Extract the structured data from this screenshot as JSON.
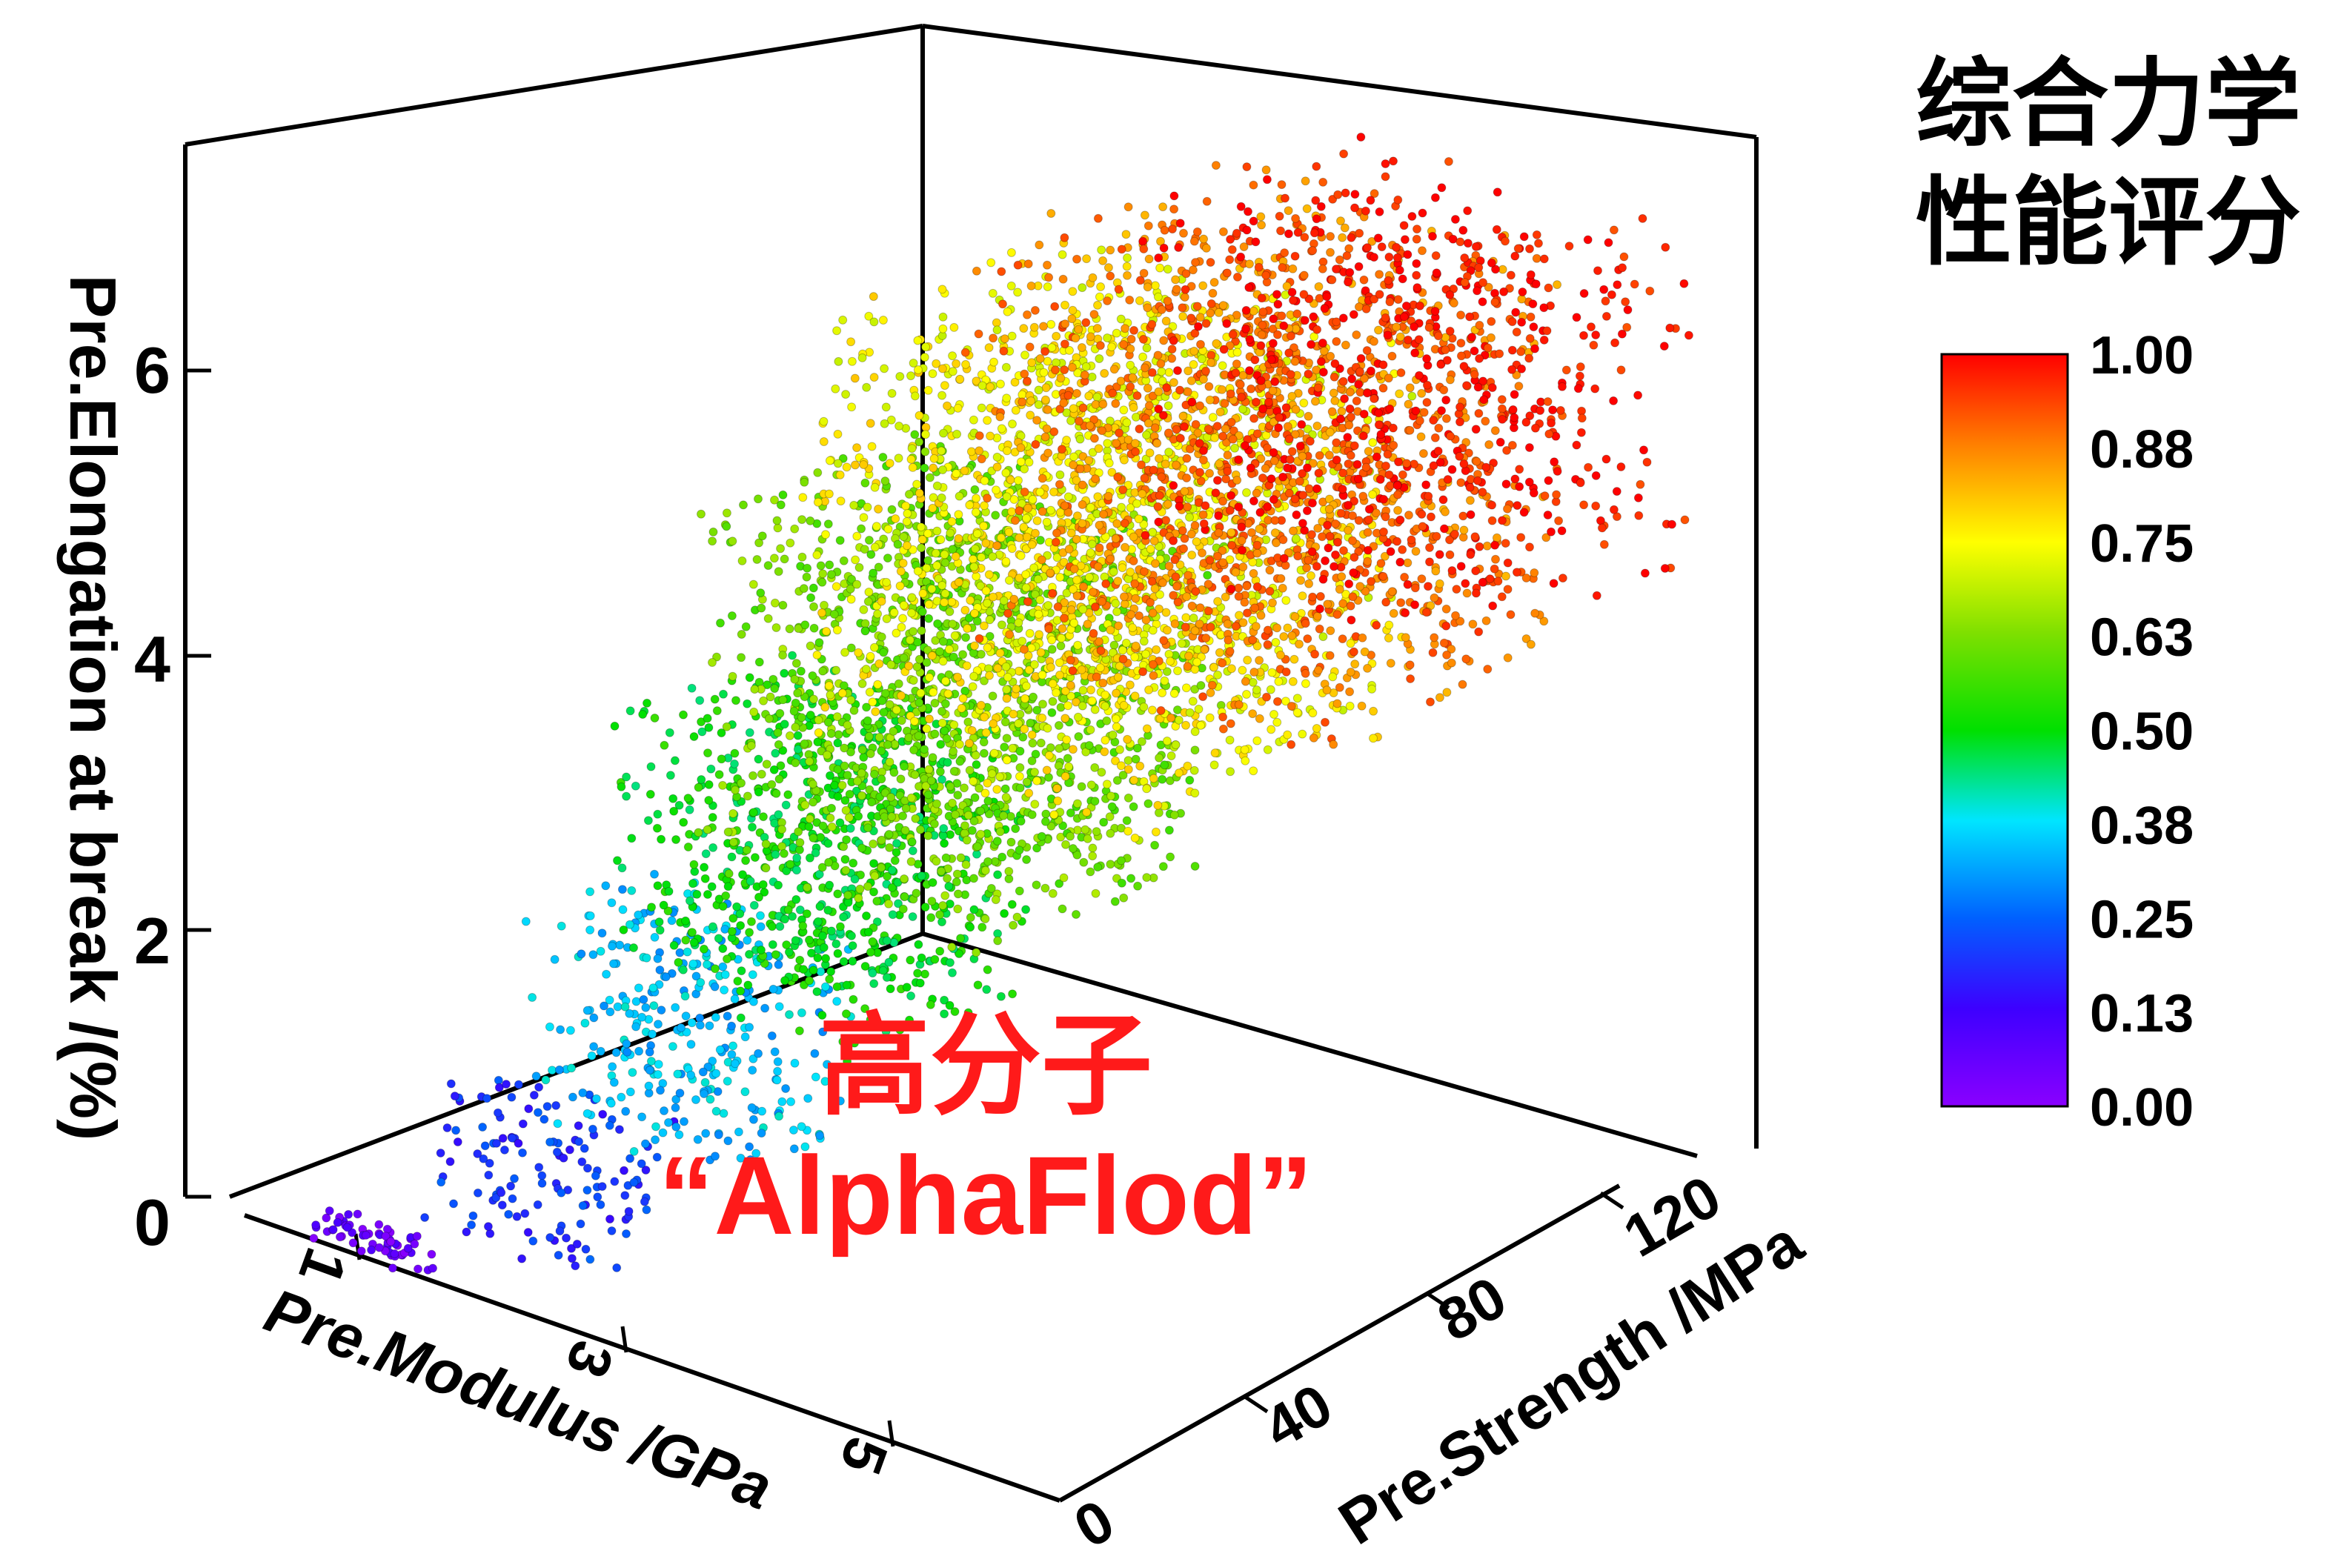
{
  "chart_data": {
    "type": "scatter",
    "dimensions": "3d",
    "x_axis": {
      "label": "Pre.Modulus /GPa",
      "ticks": [
        "1",
        "3",
        "5"
      ],
      "range": [
        0,
        6
      ]
    },
    "y_axis": {
      "label": "Pre.Strength /MPa",
      "ticks": [
        "0",
        "40",
        "80",
        "120"
      ],
      "range": [
        0,
        130
      ]
    },
    "z_axis": {
      "label": "Pre.Elongation at break /(%)",
      "ticks": [
        "0",
        "2",
        "4",
        "6"
      ],
      "range": [
        0,
        7.5
      ]
    },
    "color_scale": {
      "title_line1": "综合力学",
      "title_line2": "性能评分",
      "ticks": [
        "1.00",
        "0.88",
        "0.75",
        "0.63",
        "0.50",
        "0.38",
        "0.25",
        "0.13",
        "0.00"
      ],
      "colors": [
        "#ff0000",
        "#ff7f00",
        "#ffff00",
        "#00e000",
        "#00e5ff",
        "#0060ff",
        "#3d00ff",
        "#8a00ff"
      ]
    },
    "annotation_line1": "高分子",
    "annotation_line2": "“AlphaFlod”",
    "annotation_color": "#ff1a1a",
    "clusters": [
      {
        "score": 0.05,
        "x": [
          0.5,
          1.4
        ],
        "y": [
          0,
          6
        ],
        "z": [
          0.0,
          0.2
        ],
        "count": 60
      },
      {
        "score": 0.2,
        "x": [
          1.3,
          2.6
        ],
        "y": [
          2,
          18
        ],
        "z": [
          0.3,
          1.4
        ],
        "count": 140
      },
      {
        "score": 0.35,
        "x": [
          1.8,
          3.4
        ],
        "y": [
          8,
          32
        ],
        "z": [
          1.2,
          2.8
        ],
        "count": 320
      },
      {
        "score": 0.5,
        "x": [
          2.2,
          4.0
        ],
        "y": [
          15,
          50
        ],
        "z": [
          2.2,
          4.2
        ],
        "count": 700
      },
      {
        "score": 0.62,
        "x": [
          2.4,
          4.6
        ],
        "y": [
          25,
          70
        ],
        "z": [
          3.0,
          5.6
        ],
        "count": 1300
      },
      {
        "score": 0.75,
        "x": [
          2.6,
          5.0
        ],
        "y": [
          40,
          95
        ],
        "z": [
          3.8,
          6.8
        ],
        "count": 1700
      },
      {
        "score": 0.88,
        "x": [
          3.0,
          5.4
        ],
        "y": [
          60,
          115
        ],
        "z": [
          4.2,
          7.2
        ],
        "count": 1400
      },
      {
        "score": 0.98,
        "x": [
          3.4,
          5.8
        ],
        "y": [
          80,
          128
        ],
        "z": [
          4.8,
          7.3
        ],
        "count": 700
      }
    ]
  }
}
